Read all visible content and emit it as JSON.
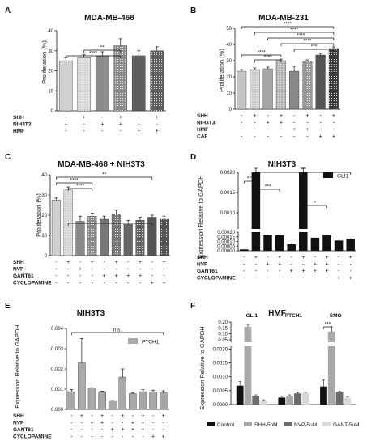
{
  "chart_data": [
    {
      "panel": "A",
      "type": "bar",
      "title": "MDA-MB-468",
      "ylabel": "Proliferation (%)",
      "ylim": [
        0,
        40
      ],
      "yticks": [
        "0",
        "10",
        "20",
        "30",
        "40"
      ],
      "values": [
        25,
        26.5,
        27.5,
        32.5,
        27.5,
        30
      ],
      "errors": [
        1.5,
        1.5,
        2,
        3.5,
        2.5,
        2
      ],
      "colors": [
        "#d0d0d0",
        "#d6d6d6",
        "#8c8c8c",
        "#8c8c8c",
        "#5e5e5e",
        "#5e5e5e"
      ],
      "patterns": [
        "solid",
        "dots",
        "solid",
        "dots",
        "solid",
        "dots"
      ],
      "rows": [
        {
          "label": "SHH",
          "values": [
            "-",
            "+",
            "-",
            "+",
            "-",
            "+"
          ]
        },
        {
          "label": "NIH3T3",
          "values": [
            "-",
            "-",
            "+",
            "+",
            "-",
            "-"
          ]
        },
        {
          "label": "HMF",
          "values": [
            "-",
            "-",
            "-",
            "-",
            "+",
            "+"
          ]
        }
      ],
      "sig": [
        {
          "from": 1,
          "to": 3,
          "label": "**"
        },
        {
          "from": 0,
          "to": 3,
          "label": "****"
        }
      ]
    },
    {
      "panel": "B",
      "type": "bar",
      "title": "MDA-MB-231",
      "ylabel": "Proliferation (%)",
      "ylim": [
        0,
        50
      ],
      "yticks": [
        "0",
        "10",
        "20",
        "30",
        "40",
        "50"
      ],
      "values": [
        23.5,
        24.5,
        25,
        30,
        23.5,
        29.5,
        33.5,
        37.5
      ],
      "errors": [
        1,
        1,
        1,
        1,
        3,
        1,
        1,
        1
      ],
      "colors": [
        "#c4c4c4",
        "#cdcdcd",
        "#a6a6a6",
        "#b5b5b5",
        "#888888",
        "#999999",
        "#555555",
        "#3a3a3a"
      ],
      "patterns": [
        "solid",
        "dots",
        "solid",
        "dots",
        "solid",
        "dots",
        "solid",
        "dots"
      ],
      "rows": [
        {
          "label": "SHH",
          "values": [
            "-",
            "+",
            "-",
            "+",
            "-",
            "+",
            "-",
            "+"
          ]
        },
        {
          "label": "NIH3T3",
          "values": [
            "-",
            "-",
            "+",
            "+",
            "-",
            "-",
            "-",
            "-"
          ]
        },
        {
          "label": "HMF",
          "values": [
            "-",
            "-",
            "-",
            "-",
            "+",
            "+",
            "-",
            "-"
          ]
        },
        {
          "label": "CAF",
          "values": [
            "-",
            "-",
            "-",
            "-",
            "-",
            "-",
            "+",
            "+"
          ]
        }
      ],
      "sig": [
        {
          "from": 0,
          "to": 7,
          "label": "****"
        },
        {
          "from": 1,
          "to": 7,
          "label": "****"
        },
        {
          "from": 2,
          "to": 7,
          "label": "****"
        },
        {
          "from": 3,
          "to": 7,
          "label": "****"
        },
        {
          "from": 4,
          "to": 7,
          "label": "***"
        },
        {
          "from": 0,
          "to": 3,
          "label": "****"
        },
        {
          "from": 1,
          "to": 3,
          "label": "****"
        }
      ]
    },
    {
      "panel": "C",
      "type": "bar",
      "title": "MDA-MB-468 + NIH3T3",
      "ylabel": "Proliferation (%)",
      "ylim": [
        0,
        40
      ],
      "yticks": [
        "0",
        "10",
        "20",
        "30",
        "40"
      ],
      "values": [
        27.5,
        32.5,
        17,
        19.5,
        18,
        20.5,
        15.5,
        17.5,
        19,
        18
      ],
      "errors": [
        1,
        1.5,
        2.5,
        1.5,
        1.5,
        2,
        2,
        1.5,
        1,
        1.5
      ],
      "colors": [
        "#d0d0d0",
        "#d6d6d6",
        "#8a8a8a",
        "#8a8a8a",
        "#777777",
        "#777777",
        "#666666",
        "#666666",
        "#555555",
        "#555555"
      ],
      "patterns": [
        "solid",
        "dots",
        "solid",
        "dots",
        "solid",
        "dots",
        "solid",
        "dots",
        "solid",
        "dots"
      ],
      "rows": [
        {
          "label": "SHH",
          "values": [
            "-",
            "+",
            "-",
            "+",
            "-",
            "+",
            "-",
            "+",
            "-",
            "+"
          ]
        },
        {
          "label": "NVP",
          "values": [
            "-",
            "-",
            "+",
            "+",
            "-",
            "-",
            "-",
            "-",
            "-",
            "-"
          ]
        },
        {
          "label": "GANT61",
          "values": [
            "-",
            "-",
            "-",
            "-",
            "+",
            "+",
            "+",
            "+",
            "-",
            "-"
          ]
        },
        {
          "label": "CYCLOPAMINE",
          "values": [
            "-",
            "-",
            "-",
            "-",
            "-",
            "-",
            "-",
            "-",
            "+",
            "+"
          ]
        }
      ],
      "sig": [
        {
          "from": 0,
          "to": 8,
          "label": "**"
        },
        {
          "from": 0,
          "to": 3,
          "label": "****"
        },
        {
          "from": 1,
          "to": 3,
          "label": "****"
        },
        {
          "from": 1,
          "to": 8,
          "label": ""
        }
      ]
    },
    {
      "panel": "D",
      "type": "bar",
      "title": "NIH3T3",
      "ylabel": "Expression Relative to GAPDH",
      "legend": "GLI1",
      "yticks_top": [
        "0.0010",
        "0.0015",
        "0.0020"
      ],
      "yticks_bottom": [
        "0.00000",
        "0.00005",
        "0.00010",
        "0.00015",
        "0.00020"
      ],
      "values": [
        1.5e-05,
        0.0056,
        0.00017,
        0.000165,
        7e-05,
        0.0033,
        0.00014,
        0.000165,
        0.00011,
        0.00013
      ],
      "errors": [
        5e-06,
        0.0024,
        5e-06,
        5e-06,
        5e-06,
        0.0002,
        5e-06,
        5e-06,
        5e-06,
        5e-06
      ],
      "rows": [
        {
          "label": "SHH",
          "values": [
            "-",
            "+",
            "-",
            "+",
            "-",
            "+",
            "-",
            "+",
            "-",
            "+"
          ]
        },
        {
          "label": "NVP",
          "values": [
            "-",
            "-",
            "+",
            "+",
            "-",
            "-",
            "+",
            "+",
            "-",
            "-"
          ]
        },
        {
          "label": "GANT61",
          "values": [
            "-",
            "-",
            "-",
            "-",
            "+",
            "+",
            "+",
            "+",
            "-",
            "-"
          ]
        },
        {
          "label": "CYCLOPAMINE",
          "values": [
            "-",
            "-",
            "-",
            "-",
            "-",
            "-",
            "-",
            "-",
            "+",
            "+"
          ]
        }
      ],
      "sig": [
        {
          "from": 0,
          "to": 1,
          "label": "***"
        },
        {
          "from": 1,
          "to": 3,
          "label": "***"
        },
        {
          "from": 1,
          "to": 9,
          "label": "***"
        },
        {
          "from": 5,
          "to": 7,
          "label": "*"
        }
      ]
    },
    {
      "panel": "E",
      "type": "bar",
      "title": "NIH3T3",
      "ylabel": "Expression Relative to GAPDH",
      "legend": "PTCH1",
      "ylim": [
        0,
        0.004
      ],
      "yticks": [
        "0.000",
        "0.001",
        "0.002",
        "0.003",
        "0.004"
      ],
      "values": [
        0.00088,
        0.0023,
        0.00105,
        0.00088,
        0.00042,
        0.0016,
        0.00078,
        0.00088,
        0.00085,
        0.00082
      ],
      "errors": [
        0.0001,
        0.0012,
        2e-05,
        2e-05,
        2e-05,
        0.0004,
        3e-05,
        0.0001,
        0.0001,
        0.0001
      ],
      "rows": [
        {
          "label": "SHH",
          "values": [
            "-",
            "+",
            "-",
            "+",
            "-",
            "+",
            "-",
            "+",
            "-",
            "+"
          ]
        },
        {
          "label": "NVP",
          "values": [
            "-",
            "-",
            "+",
            "+",
            "-",
            "-",
            "+",
            "+",
            "-",
            "-"
          ]
        },
        {
          "label": "GANT61",
          "values": [
            "-",
            "-",
            "-",
            "-",
            "+",
            "+",
            "+",
            "+",
            "-",
            "-"
          ]
        },
        {
          "label": "CYCLOPAMINE",
          "values": [
            "-",
            "-",
            "-",
            "-",
            "-",
            "-",
            "-",
            "-",
            "+",
            "+"
          ]
        }
      ],
      "sig": [
        {
          "from": 0,
          "to": 9,
          "label": "n.s."
        }
      ]
    },
    {
      "panel": "F",
      "type": "bar",
      "title": "HMF",
      "ylabel": "Expression Relative to GAPDH",
      "yticks_top": [
        "0.05",
        "0.10",
        "0.15",
        "0.20"
      ],
      "yticks_bottom": [
        "0.0000",
        "0.0005",
        "0.0010",
        "0.0015",
        "0.0020"
      ],
      "categories": [
        "GLI1",
        "PTCH1",
        "SMO"
      ],
      "series": [
        {
          "name": "Control",
          "values": [
            0.00068,
            0.00025,
            0.00065
          ],
          "errors": [
            0.00015,
            5e-05,
            0.00025
          ]
        },
        {
          "name": "SHH-5nM",
          "values": [
            0.16,
            0.0003,
            0.12
          ],
          "errors": [
            0.02,
            5e-05,
            0.04
          ]
        },
        {
          "name": "NVP-5uM",
          "values": [
            0.00032,
            0.0004,
            0.00045
          ],
          "errors": [
            3e-05,
            3e-05,
            3e-05
          ]
        },
        {
          "name": "GANT-5uM",
          "values": [
            0.00015,
            0.00042,
            0.00025
          ],
          "errors": [
            2e-05,
            2e-05,
            2e-05
          ]
        }
      ],
      "colors": [
        "#111111",
        "#a8a8a8",
        "#6b6b6b",
        "#d8d8d8"
      ],
      "sig": [
        {
          "category": "SMO",
          "from": 0,
          "to": 1,
          "label": "***"
        }
      ]
    }
  ]
}
